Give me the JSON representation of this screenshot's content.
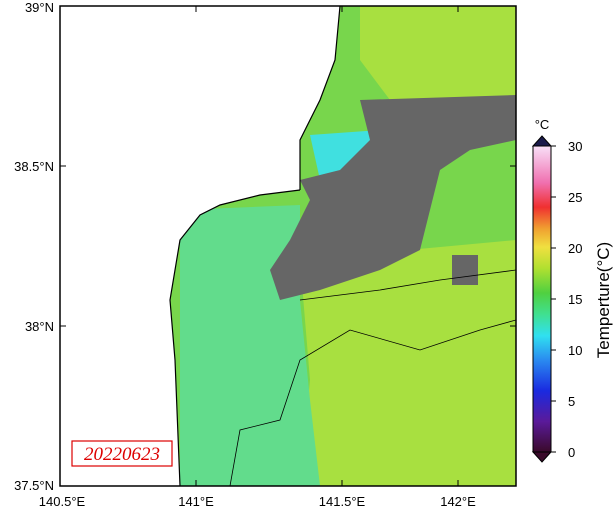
{
  "map": {
    "lat_labels": [
      "39°N",
      "38.5°N",
      "38°N",
      "37.5°N"
    ],
    "lon_labels": [
      "140.5°E",
      "141°E",
      "141.5°E",
      "142°E"
    ],
    "date": "20220623",
    "colorbar": {
      "unit": "°C",
      "label": "Temperture(°C)",
      "ticks": [
        0,
        5,
        10,
        15,
        20,
        25,
        30
      ]
    }
  }
}
